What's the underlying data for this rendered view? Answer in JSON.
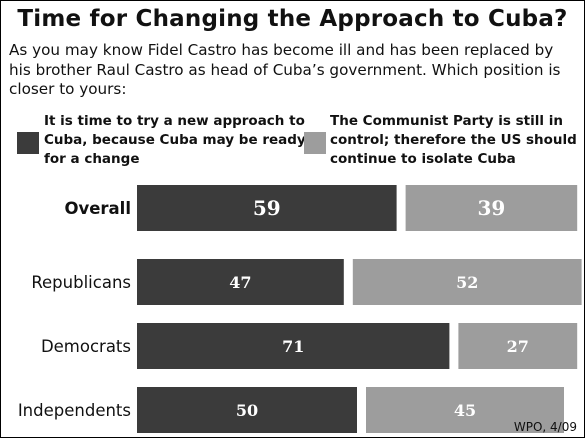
{
  "chart_data": {
    "type": "bar",
    "title": "Time for Changing the Approach to Cuba?",
    "subtitle": "As you may know Fidel Castro has become ill and has been replaced by his brother Raul Castro as head of Cuba’s government.  Which position is closer to yours:",
    "categories": [
      "Overall",
      "Republicans",
      "Democrats",
      "Independents"
    ],
    "series": [
      {
        "name": "It is time to try a new approach to Cuba, because Cuba may be ready for a change",
        "values": [
          59,
          47,
          71,
          50
        ]
      },
      {
        "name": "The Communist Party is still in control; therefore the US should continue to isolate Cuba",
        "values": [
          39,
          52,
          27,
          45
        ]
      }
    ],
    "stacked": true,
    "colors": [
      "#3b3b3b",
      "#9d9d9d"
    ],
    "source": "WPO, 4/09"
  }
}
